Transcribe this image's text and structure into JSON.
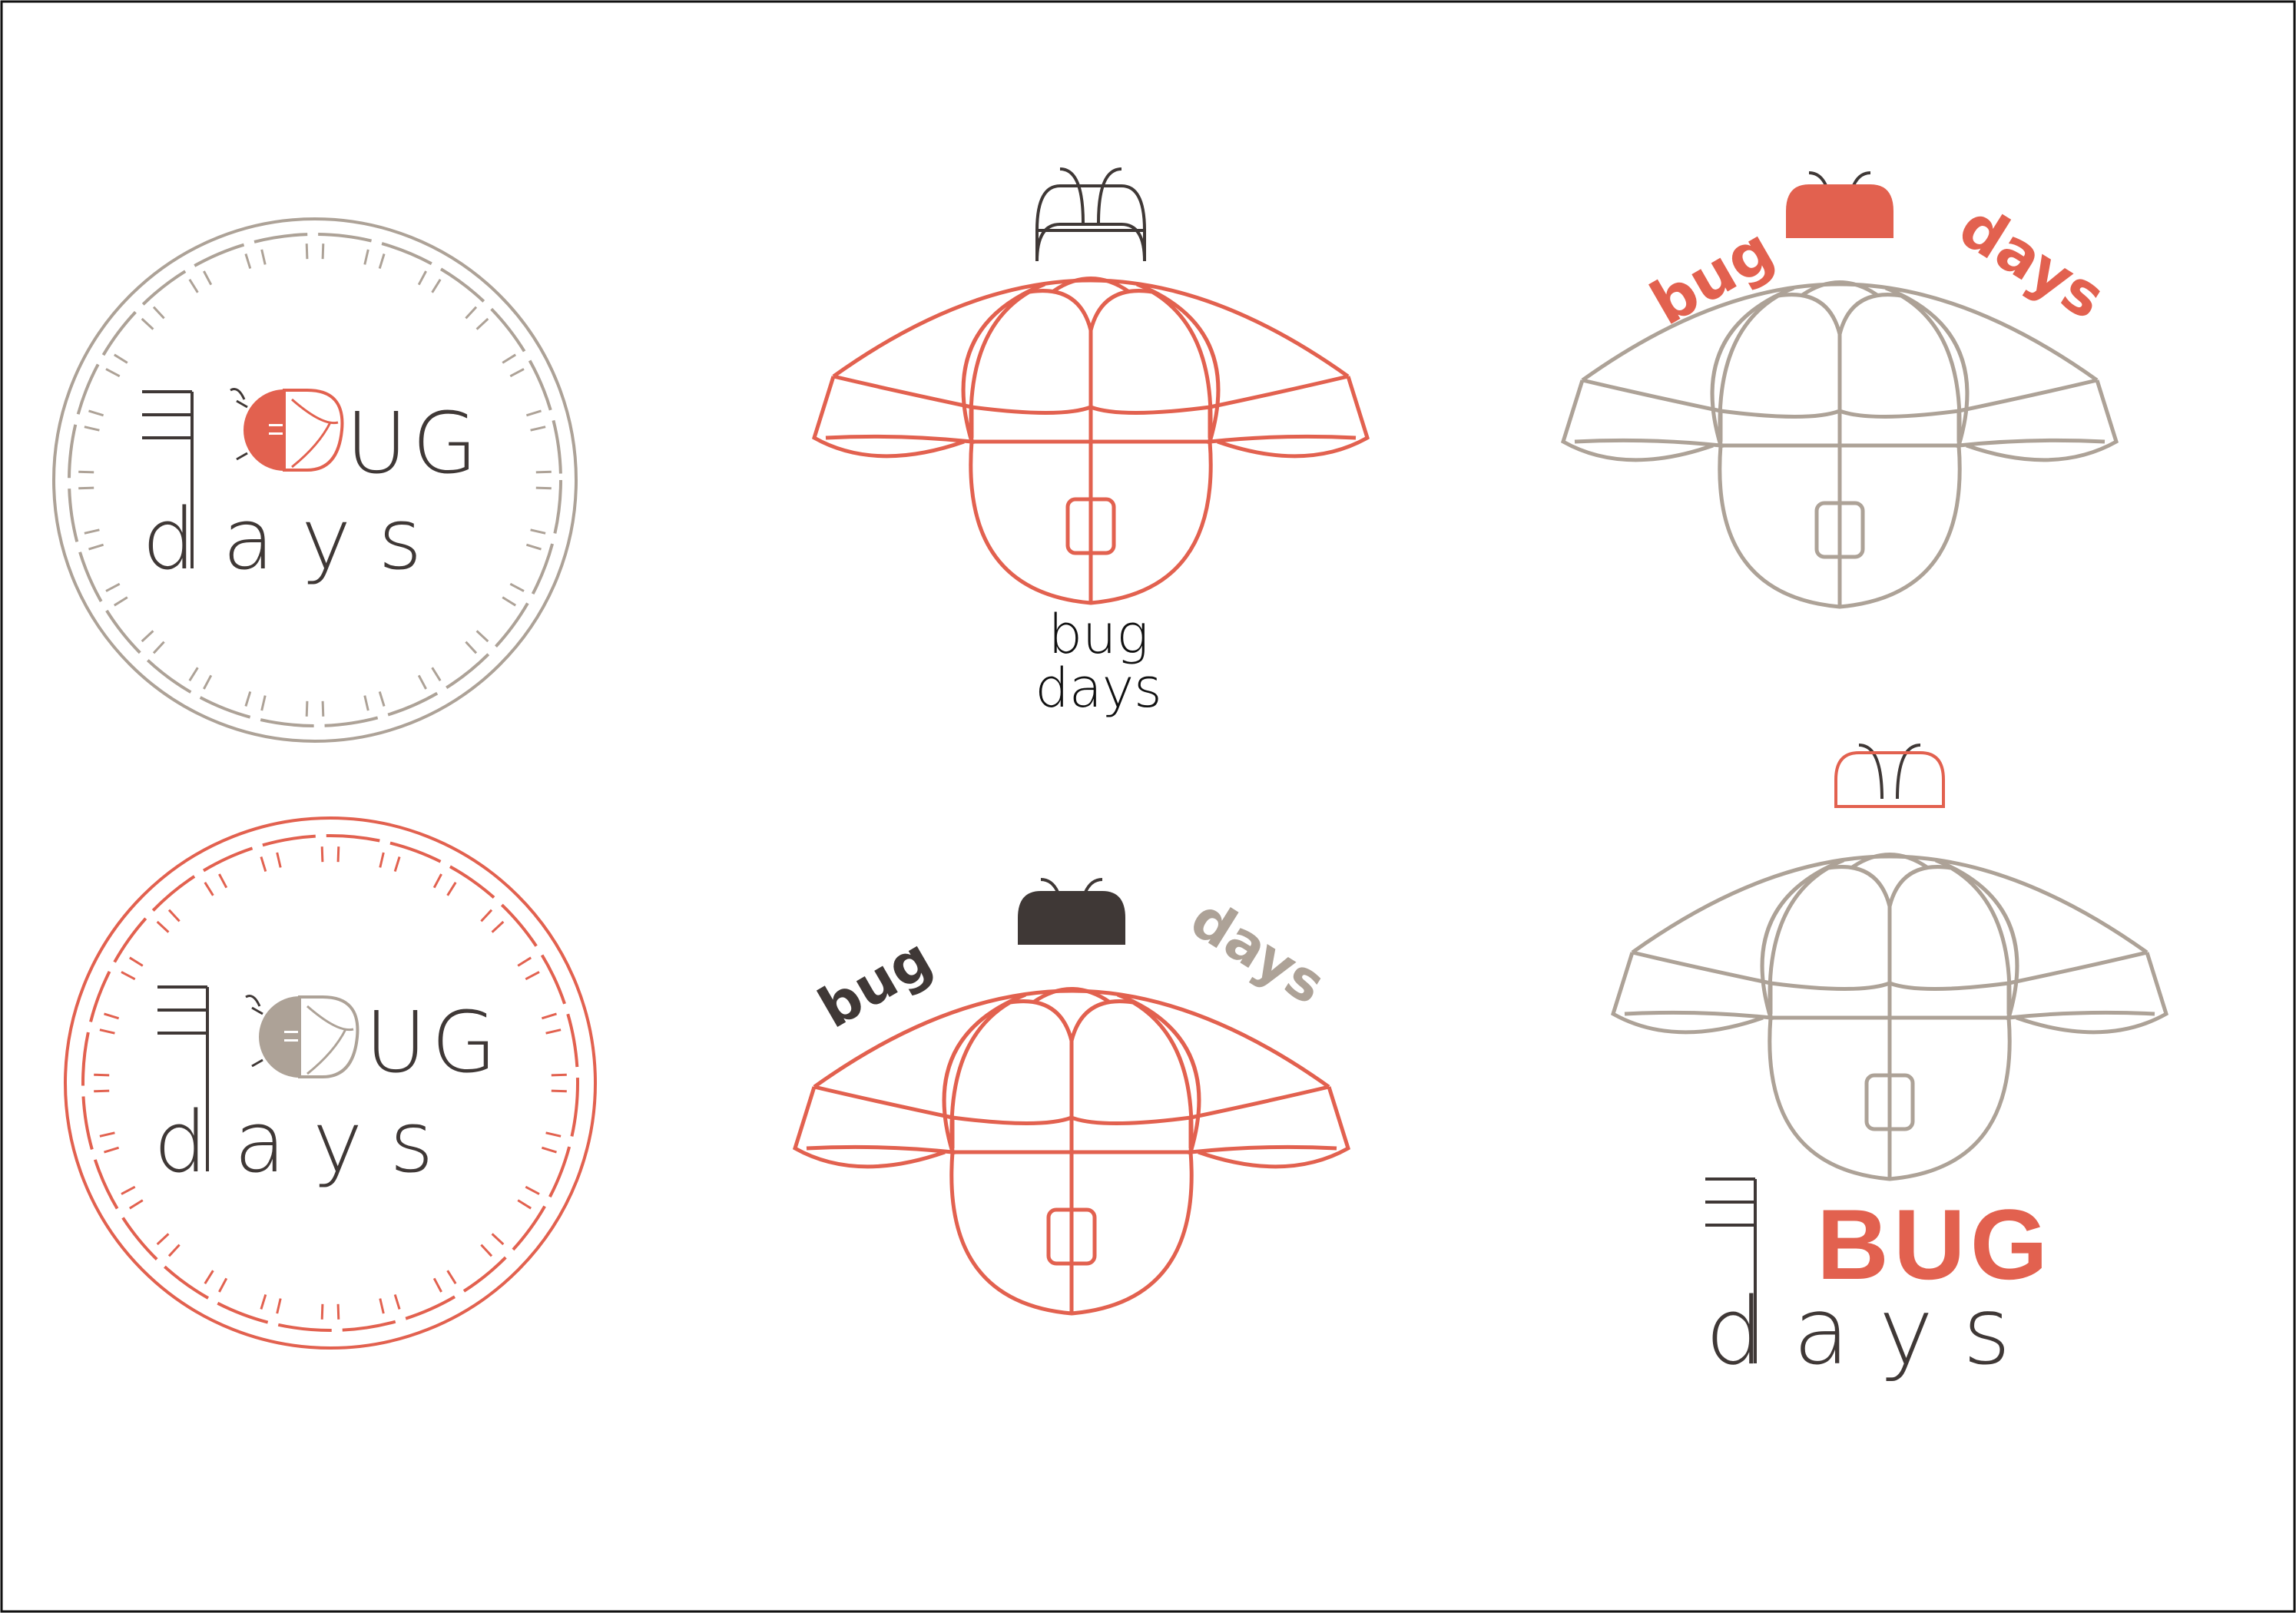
{
  "colors": {
    "coral": "#e2614f",
    "taupe": "#ada297",
    "dark": "#3f3836",
    "frame": "#111111",
    "background": "#ffffff"
  },
  "logos": {
    "badge_taupe": {
      "word_ug": "UG",
      "word_days": "d a y s"
    },
    "badge_coral": {
      "word_ug": "UG",
      "word_days": "d a y s"
    },
    "bug_stacked": {
      "word_bug": "bug",
      "word_days": "days"
    },
    "bug_arched_coral": {
      "word_bug": "bug",
      "word_days": "days"
    },
    "bug_arched_dark": {
      "word_bug": "bug",
      "word_days": "days"
    },
    "bug_bold": {
      "word_bug": "BUG",
      "word_days": "d a y s"
    }
  }
}
